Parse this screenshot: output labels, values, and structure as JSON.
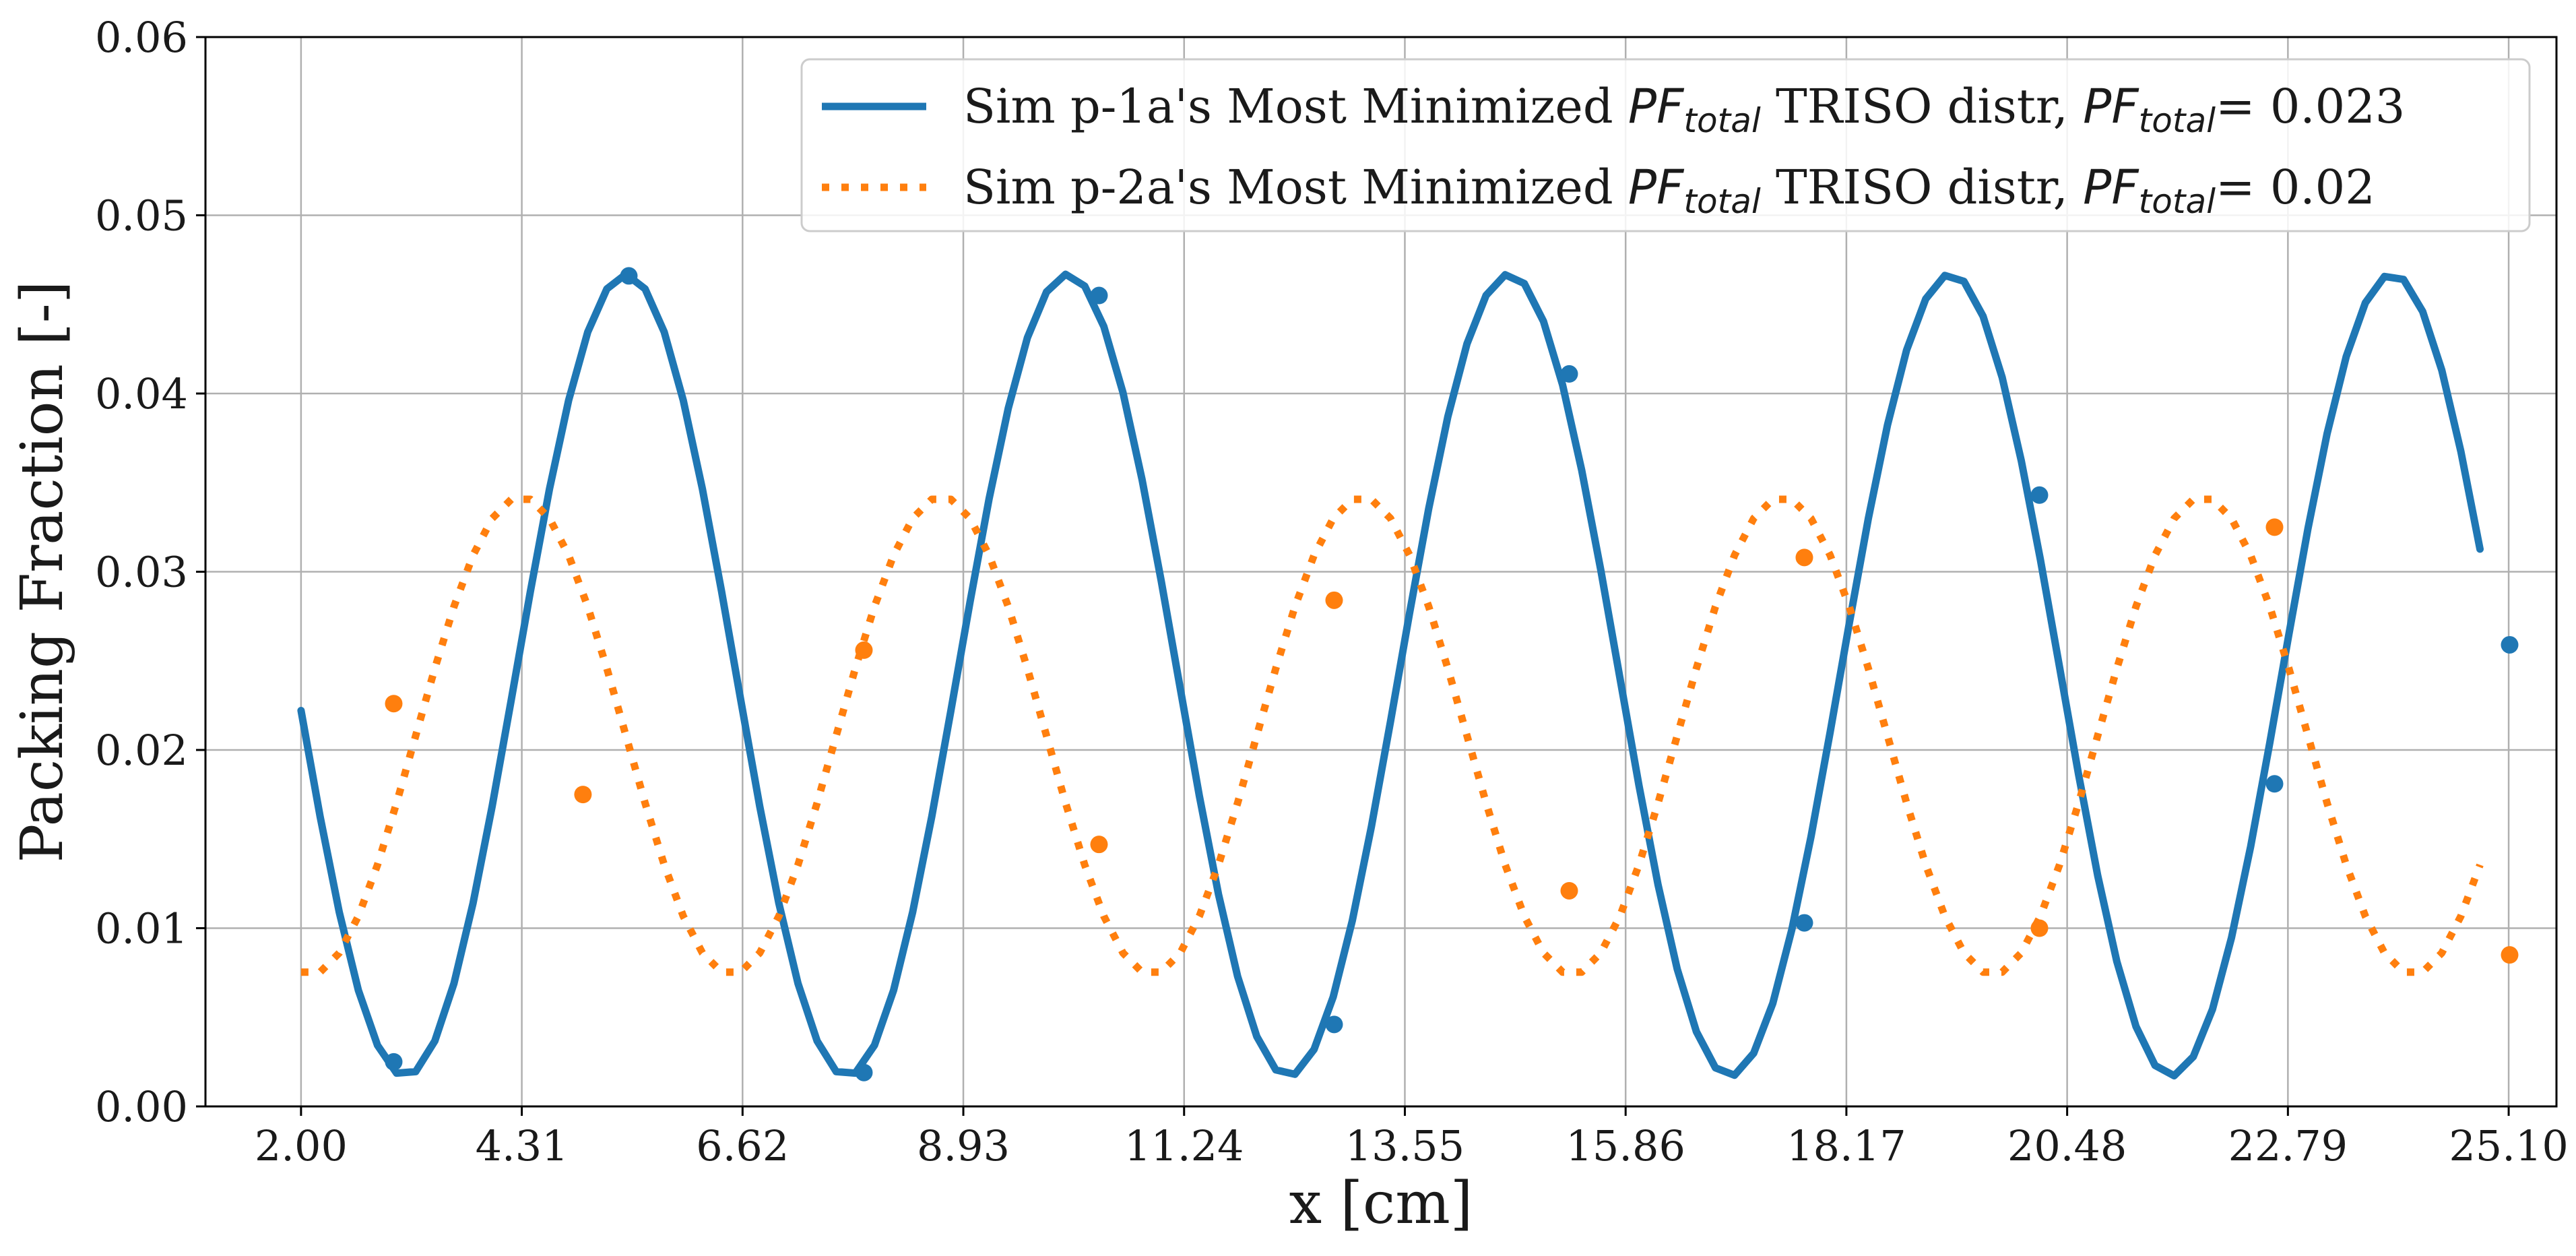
{
  "chart_data": {
    "type": "line",
    "xlabel": "x [cm]",
    "ylabel": "Packing Fraction [-]",
    "xlim": [
      1.0,
      25.6
    ],
    "ylim": [
      0.0,
      0.06
    ],
    "grid": true,
    "legend_position": "top-right",
    "x_ticks": [
      2.0,
      4.31,
      6.62,
      8.93,
      11.24,
      13.55,
      15.86,
      18.17,
      20.48,
      22.79,
      25.1
    ],
    "x_tick_labels": [
      "2.00",
      "4.31",
      "6.62",
      "8.93",
      "11.24",
      "13.55",
      "15.86",
      "18.17",
      "20.48",
      "22.79",
      "25.10"
    ],
    "y_ticks": [
      0.0,
      0.01,
      0.02,
      0.03,
      0.04,
      0.05,
      0.06
    ],
    "y_tick_labels": [
      "0.00",
      "0.01",
      "0.02",
      "0.03",
      "0.04",
      "0.05",
      "0.06"
    ],
    "series": [
      {
        "legend_prefix": "Sim p-1a's Most Minimized ",
        "legend_sym": "PF",
        "legend_sub": "total",
        "legend_mid": " TRISO distr, ",
        "legend_eq": "= 0.023",
        "color": "#1f77b4",
        "style": "solid",
        "model": {
          "mean": 0.0242,
          "amplitude": 0.0225,
          "period": 4.62,
          "peak_x": 5.4
        },
        "x": [
          2.0,
          2.2,
          2.4,
          2.6,
          2.8,
          3.0,
          3.2,
          3.4,
          3.6,
          3.8,
          4.0,
          4.2,
          4.4,
          4.6,
          4.8,
          5.0,
          5.2,
          5.4,
          5.6,
          5.8,
          6.0,
          6.2,
          6.4,
          6.6,
          6.8,
          7.0,
          7.2,
          7.4,
          7.6,
          7.8,
          8.0,
          8.2,
          8.4,
          8.6,
          8.8,
          9.0,
          9.2,
          9.4,
          9.6,
          9.8,
          10.0,
          10.2,
          10.4,
          10.6,
          10.8,
          11.0,
          11.2,
          11.4,
          11.6,
          11.8,
          12.0,
          12.2,
          12.4,
          12.6,
          12.8,
          13.0,
          13.2,
          13.4,
          13.6,
          13.8,
          14.0,
          14.2,
          14.4,
          14.6,
          14.8,
          15.0,
          15.2,
          15.4,
          15.6,
          15.8,
          16.0,
          16.2,
          16.4,
          16.6,
          16.8,
          17.0,
          17.2,
          17.4,
          17.6,
          17.8,
          18.0,
          18.2,
          18.4,
          18.6,
          18.8,
          19.0,
          19.2,
          19.4,
          19.6,
          19.8,
          20.0,
          20.2,
          20.4,
          20.6,
          20.8,
          21.0,
          21.2,
          21.4,
          21.6,
          21.8,
          22.0,
          22.2,
          22.4,
          22.6,
          22.8,
          23.0,
          23.2,
          23.4,
          23.6,
          23.8,
          24.0,
          24.2,
          24.4,
          24.6,
          24.8
        ],
        "markers": [
          {
            "x": 2.97,
            "y": 0.0025
          },
          {
            "x": 5.43,
            "y": 0.0466
          },
          {
            "x": 7.89,
            "y": 0.0019
          },
          {
            "x": 10.35,
            "y": 0.0455
          },
          {
            "x": 12.81,
            "y": 0.0046
          },
          {
            "x": 15.27,
            "y": 0.0411
          },
          {
            "x": 17.73,
            "y": 0.0103
          },
          {
            "x": 20.19,
            "y": 0.0343
          },
          {
            "x": 22.65,
            "y": 0.0181
          },
          {
            "x": 25.11,
            "y": 0.0259
          }
        ]
      },
      {
        "legend_prefix": "Sim p-2a's Most Minimized ",
        "legend_sym": "PF",
        "legend_sub": "total",
        "legend_mid": " TRISO distr, ",
        "legend_eq": "= 0.02",
        "color": "#ff7f0e",
        "style": "dotted",
        "model": {
          "mean": 0.0208,
          "amplitude": 0.0134,
          "period": 4.4,
          "peak_x": 4.3
        },
        "x": [
          2.0,
          2.2,
          2.4,
          2.6,
          2.8,
          3.0,
          3.2,
          3.4,
          3.6,
          3.8,
          4.0,
          4.2,
          4.4,
          4.6,
          4.8,
          5.0,
          5.2,
          5.4,
          5.6,
          5.8,
          6.0,
          6.2,
          6.4,
          6.6,
          6.8,
          7.0,
          7.2,
          7.4,
          7.6,
          7.8,
          8.0,
          8.2,
          8.4,
          8.6,
          8.8,
          9.0,
          9.2,
          9.4,
          9.6,
          9.8,
          10.0,
          10.2,
          10.4,
          10.6,
          10.8,
          11.0,
          11.2,
          11.4,
          11.6,
          11.8,
          12.0,
          12.2,
          12.4,
          12.6,
          12.8,
          13.0,
          13.2,
          13.4,
          13.6,
          13.8,
          14.0,
          14.2,
          14.4,
          14.6,
          14.8,
          15.0,
          15.2,
          15.4,
          15.6,
          15.8,
          16.0,
          16.2,
          16.4,
          16.6,
          16.8,
          17.0,
          17.2,
          17.4,
          17.6,
          17.8,
          18.0,
          18.2,
          18.4,
          18.6,
          18.8,
          19.0,
          19.2,
          19.4,
          19.6,
          19.8,
          20.0,
          20.2,
          20.4,
          20.6,
          20.8,
          21.0,
          21.2,
          21.4,
          21.6,
          21.8,
          22.0,
          22.2,
          22.4,
          22.6,
          22.8,
          23.0,
          23.2,
          23.4,
          23.6,
          23.8,
          24.0,
          24.2,
          24.4,
          24.6,
          24.8
        ],
        "markers": [
          {
            "x": 2.97,
            "y": 0.0226
          },
          {
            "x": 4.95,
            "y": 0.0175
          },
          {
            "x": 7.89,
            "y": 0.0256
          },
          {
            "x": 10.35,
            "y": 0.0147
          },
          {
            "x": 12.81,
            "y": 0.0284
          },
          {
            "x": 15.27,
            "y": 0.0121
          },
          {
            "x": 17.73,
            "y": 0.0308
          },
          {
            "x": 20.19,
            "y": 0.01
          },
          {
            "x": 22.65,
            "y": 0.0325
          },
          {
            "x": 25.11,
            "y": 0.0085
          }
        ]
      }
    ]
  }
}
